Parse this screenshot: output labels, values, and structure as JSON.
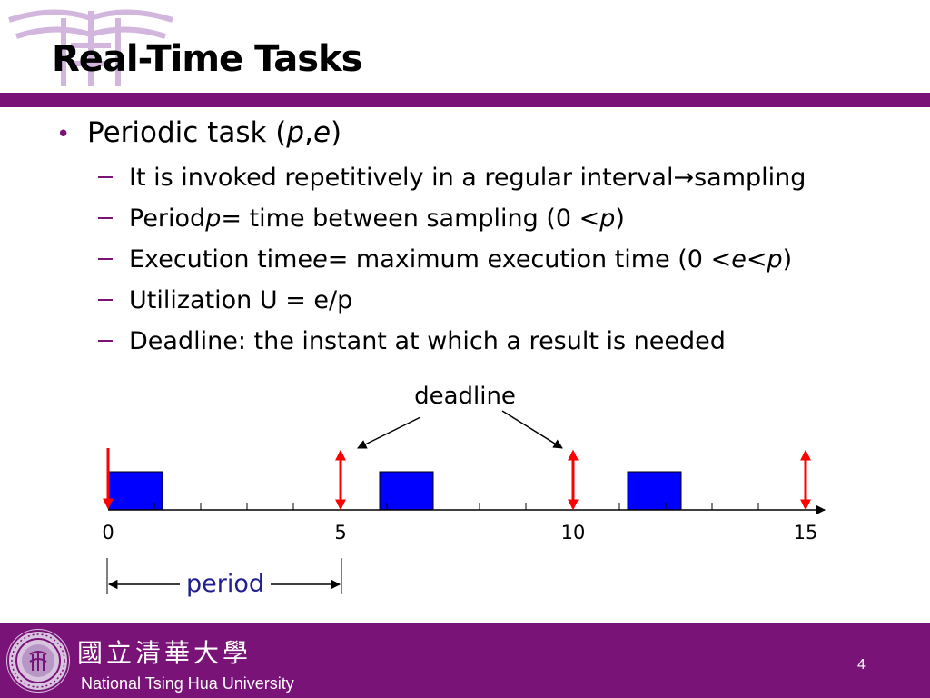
{
  "slide": {
    "title": "Real-Time Tasks",
    "bullet": {
      "prefix": "Periodic task (",
      "var1": "p",
      "comma": ",",
      "var2": "e",
      "suffix": ")"
    },
    "sub_items": [
      {
        "t1": "It is invoked repetitively in a regular interval ",
        "arrow": "→",
        "t2": " sampling"
      },
      {
        "t1": "Period ",
        "v1": "p",
        "t2": " = time between sampling (0 < ",
        "v2": "p",
        "t3": ")"
      },
      {
        "t1": "Execution time ",
        "v1": "e",
        "t2": " = maximum execution time (0 < ",
        "v2": "e",
        "t3": " < ",
        "v3": "p",
        "t4": ")"
      },
      {
        "t1": "Utilization U = e/p"
      },
      {
        "t1": "Deadline: the instant at which a result is needed"
      }
    ]
  },
  "diagram": {
    "deadline_label": "deadline",
    "period_label": "period",
    "tick_labels": [
      "0",
      "5",
      "10",
      "15"
    ],
    "colors": {
      "task": "#0000ff",
      "arrow": "#ff0000",
      "period_text": "#1f1f8f",
      "accent": "#7a1378"
    }
  },
  "footer": {
    "chinese_name": "國立清華大學",
    "english_name": "National Tsing Hua University",
    "page_number": "4"
  }
}
